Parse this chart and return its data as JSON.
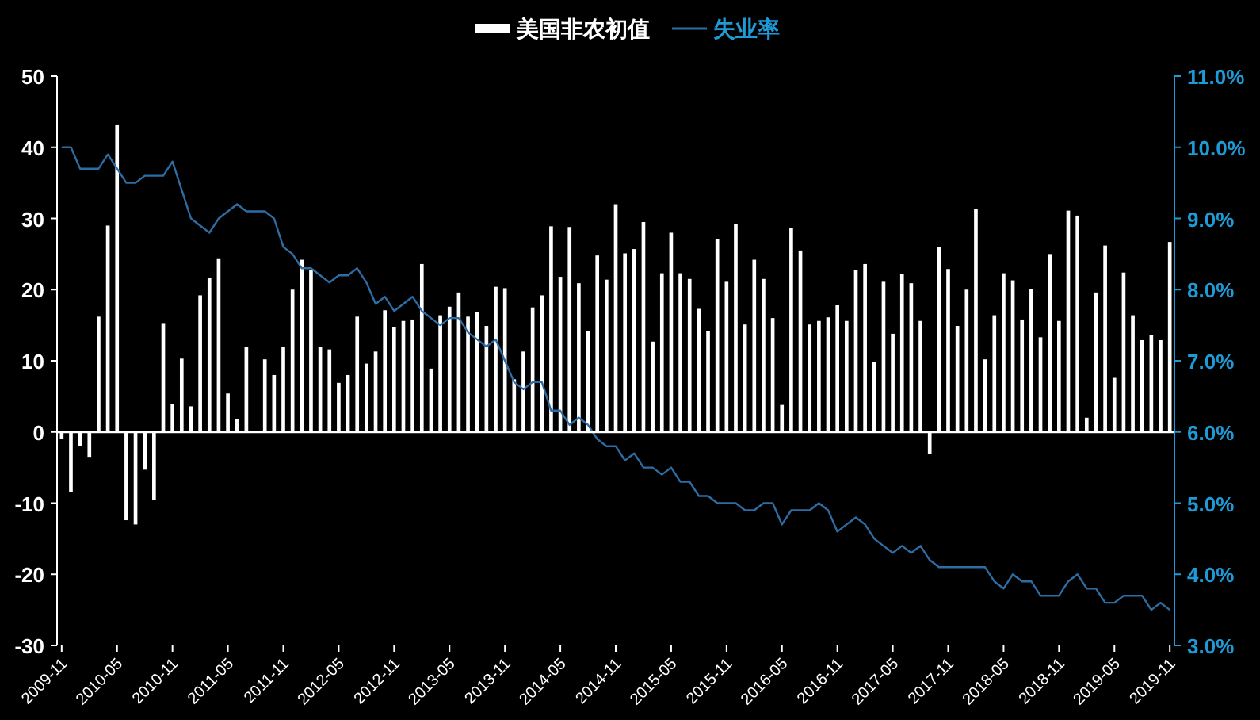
{
  "chart_data": {
    "type": "bar",
    "legend": "top",
    "categories": [
      "2009-11",
      null,
      null,
      null,
      null,
      null,
      "2010-05",
      null,
      null,
      null,
      null,
      null,
      "2010-11",
      null,
      null,
      null,
      null,
      null,
      "2011-05",
      null,
      null,
      null,
      null,
      null,
      "2011-11",
      null,
      null,
      null,
      null,
      null,
      "2012-05",
      null,
      null,
      null,
      null,
      null,
      "2012-11",
      null,
      null,
      null,
      null,
      null,
      "2013-05",
      null,
      null,
      null,
      null,
      null,
      "2013-11",
      null,
      null,
      null,
      null,
      null,
      "2014-05",
      null,
      null,
      null,
      null,
      null,
      "2014-11",
      null,
      null,
      null,
      null,
      null,
      "2015-05",
      null,
      null,
      null,
      null,
      null,
      "2015-11",
      null,
      null,
      null,
      null,
      null,
      "2016-05",
      null,
      null,
      null,
      null,
      null,
      "2016-11",
      null,
      null,
      null,
      null,
      null,
      "2017-05",
      null,
      null,
      null,
      null,
      null,
      "2017-11",
      null,
      null,
      null,
      null,
      null,
      "2018-05",
      null,
      null,
      null,
      null,
      null,
      "2018-11",
      null,
      null,
      null,
      null,
      null,
      "2019-05",
      null,
      null,
      null,
      null,
      null,
      "2019-11"
    ],
    "series": [
      {
        "name": "美国非农初值",
        "color": "#ffffff",
        "values": [
          -1.0,
          -8.4,
          -2.0,
          -3.5,
          16.2,
          29.0,
          43.1,
          -12.4,
          -13.0,
          -5.3,
          -9.5,
          15.3,
          3.9,
          10.3,
          3.6,
          19.2,
          21.6,
          24.4,
          5.4,
          1.8,
          11.9,
          0,
          10.2,
          8.0,
          12.0,
          20.0,
          24.2,
          22.7,
          12.0,
          11.6,
          6.9,
          8.0,
          16.2,
          9.6,
          11.3,
          17.1,
          14.7,
          15.6,
          15.8,
          23.6,
          8.9,
          16.4,
          17.6,
          19.6,
          16.2,
          16.9,
          14.9,
          20.4,
          20.2,
          7.4,
          11.3,
          17.5,
          19.2,
          28.9,
          21.8,
          28.8,
          20.9,
          14.2,
          24.8,
          21.4,
          32.0,
          25.1,
          25.7,
          29.5,
          12.7,
          22.3,
          28.0,
          22.3,
          21.5,
          17.3,
          14.2,
          27.1,
          21.1,
          29.2,
          15.1,
          24.2,
          21.5,
          16.0,
          3.8,
          28.7,
          25.5,
          15.1,
          15.6,
          16.1,
          17.8,
          15.6,
          22.7,
          23.6,
          9.8,
          21.1,
          13.8,
          22.2,
          20.9,
          15.6,
          -3.1,
          26.0,
          22.9,
          14.9,
          20.0,
          31.3,
          10.2,
          16.4,
          22.3,
          21.3,
          15.8,
          20.1,
          13.3,
          25.0,
          15.6,
          31.1,
          30.4,
          2.0,
          19.6,
          26.2,
          7.6,
          22.4,
          16.4,
          12.9,
          13.6,
          12.9,
          26.7
        ]
      },
      {
        "name": "失业率",
        "type": "line",
        "axis": "y2",
        "color": "#2e6da4",
        "values": [
          10.0,
          10.0,
          9.7,
          9.7,
          9.7,
          9.9,
          9.7,
          9.5,
          9.5,
          9.6,
          9.6,
          9.6,
          9.8,
          9.4,
          9.0,
          8.9,
          8.8,
          9.0,
          9.1,
          9.2,
          9.1,
          9.1,
          9.1,
          9.0,
          8.6,
          8.5,
          8.3,
          8.3,
          8.2,
          8.1,
          8.2,
          8.2,
          8.3,
          8.1,
          7.8,
          7.9,
          7.7,
          7.8,
          7.9,
          7.7,
          7.6,
          7.5,
          7.6,
          7.6,
          7.4,
          7.3,
          7.2,
          7.3,
          7.0,
          6.7,
          6.6,
          6.7,
          6.7,
          6.3,
          6.3,
          6.1,
          6.2,
          6.1,
          5.9,
          5.8,
          5.8,
          5.6,
          5.7,
          5.5,
          5.5,
          5.4,
          5.5,
          5.3,
          5.3,
          5.1,
          5.1,
          5.0,
          5.0,
          5.0,
          4.9,
          4.9,
          5.0,
          5.0,
          4.7,
          4.9,
          4.9,
          4.9,
          5.0,
          4.9,
          4.6,
          4.7,
          4.8,
          4.7,
          4.5,
          4.4,
          4.3,
          4.4,
          4.3,
          4.4,
          4.2,
          4.1,
          4.1,
          4.1,
          4.1,
          4.1,
          4.1,
          3.9,
          3.8,
          4.0,
          3.9,
          3.9,
          3.7,
          3.7,
          3.7,
          3.9,
          4.0,
          3.8,
          3.8,
          3.6,
          3.6,
          3.7,
          3.7,
          3.7,
          3.5,
          3.6,
          3.5
        ]
      }
    ],
    "ylim": [
      -30,
      50
    ],
    "yticks": [
      -30,
      -20,
      -10,
      0,
      10,
      20,
      30,
      40,
      50
    ],
    "y2lim": [
      3,
      11
    ],
    "y2ticks": [
      {
        "value": 3,
        "label": "3.0%"
      },
      {
        "value": 4,
        "label": "4.0%"
      },
      {
        "value": 5,
        "label": "5.0%"
      },
      {
        "value": 6,
        "label": "6.0%"
      },
      {
        "value": 7,
        "label": "7.0%"
      },
      {
        "value": 8,
        "label": "8.0%"
      },
      {
        "value": 9,
        "label": "9.0%"
      },
      {
        "value": 10,
        "label": "10.0%"
      },
      {
        "value": 11,
        "label": "11.0%"
      }
    ]
  }
}
